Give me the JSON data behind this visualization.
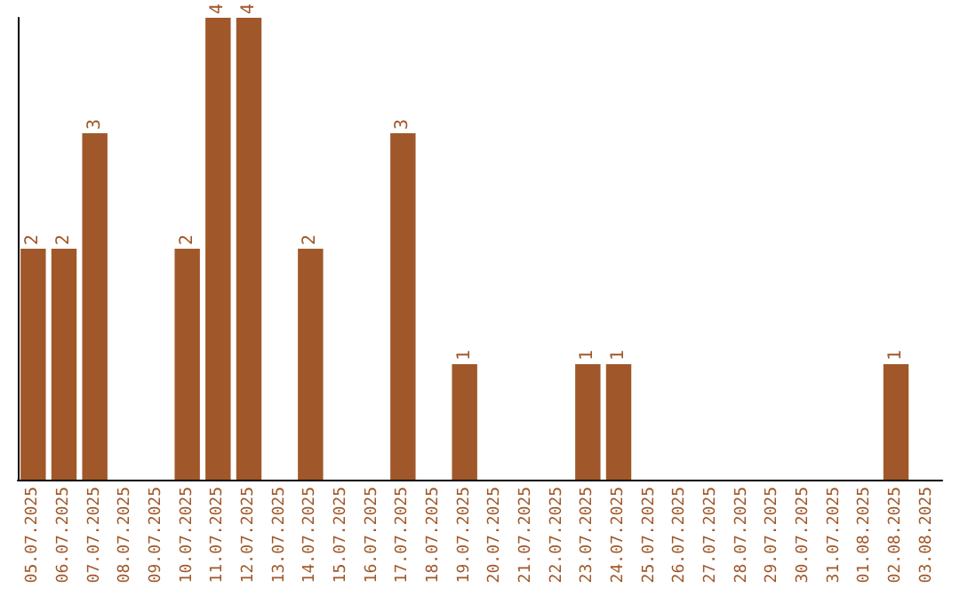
{
  "chart_data": {
    "type": "bar",
    "categories": [
      "05.07.2025",
      "06.07.2025",
      "07.07.2025",
      "08.07.2025",
      "09.07.2025",
      "10.07.2025",
      "11.07.2025",
      "12.07.2025",
      "13.07.2025",
      "14.07.2025",
      "15.07.2025",
      "16.07.2025",
      "17.07.2025",
      "18.07.2025",
      "19.07.2025",
      "20.07.2025",
      "21.07.2025",
      "22.07.2025",
      "23.07.2025",
      "24.07.2025",
      "25.07.2025",
      "26.07.2025",
      "27.07.2025",
      "28.07.2025",
      "29.07.2025",
      "30.07.2025",
      "31.07.2025",
      "01.08.2025",
      "02.08.2025",
      "03.08.2025"
    ],
    "values": [
      2,
      2,
      3,
      0,
      0,
      2,
      4,
      4,
      0,
      2,
      0,
      0,
      3,
      0,
      1,
      0,
      0,
      0,
      1,
      1,
      0,
      0,
      0,
      0,
      0,
      0,
      0,
      0,
      1,
      0
    ],
    "value_labels": [
      "2",
      "2",
      "3",
      null,
      null,
      "2",
      "4",
      "4",
      null,
      "2",
      null,
      null,
      "3",
      null,
      "1",
      null,
      null,
      null,
      "1",
      "1",
      null,
      null,
      null,
      null,
      null,
      null,
      null,
      null,
      "1",
      null
    ],
    "color": "#a0582a",
    "ylim": [
      0,
      4
    ],
    "tick_labels": "x",
    "grid": false
  }
}
